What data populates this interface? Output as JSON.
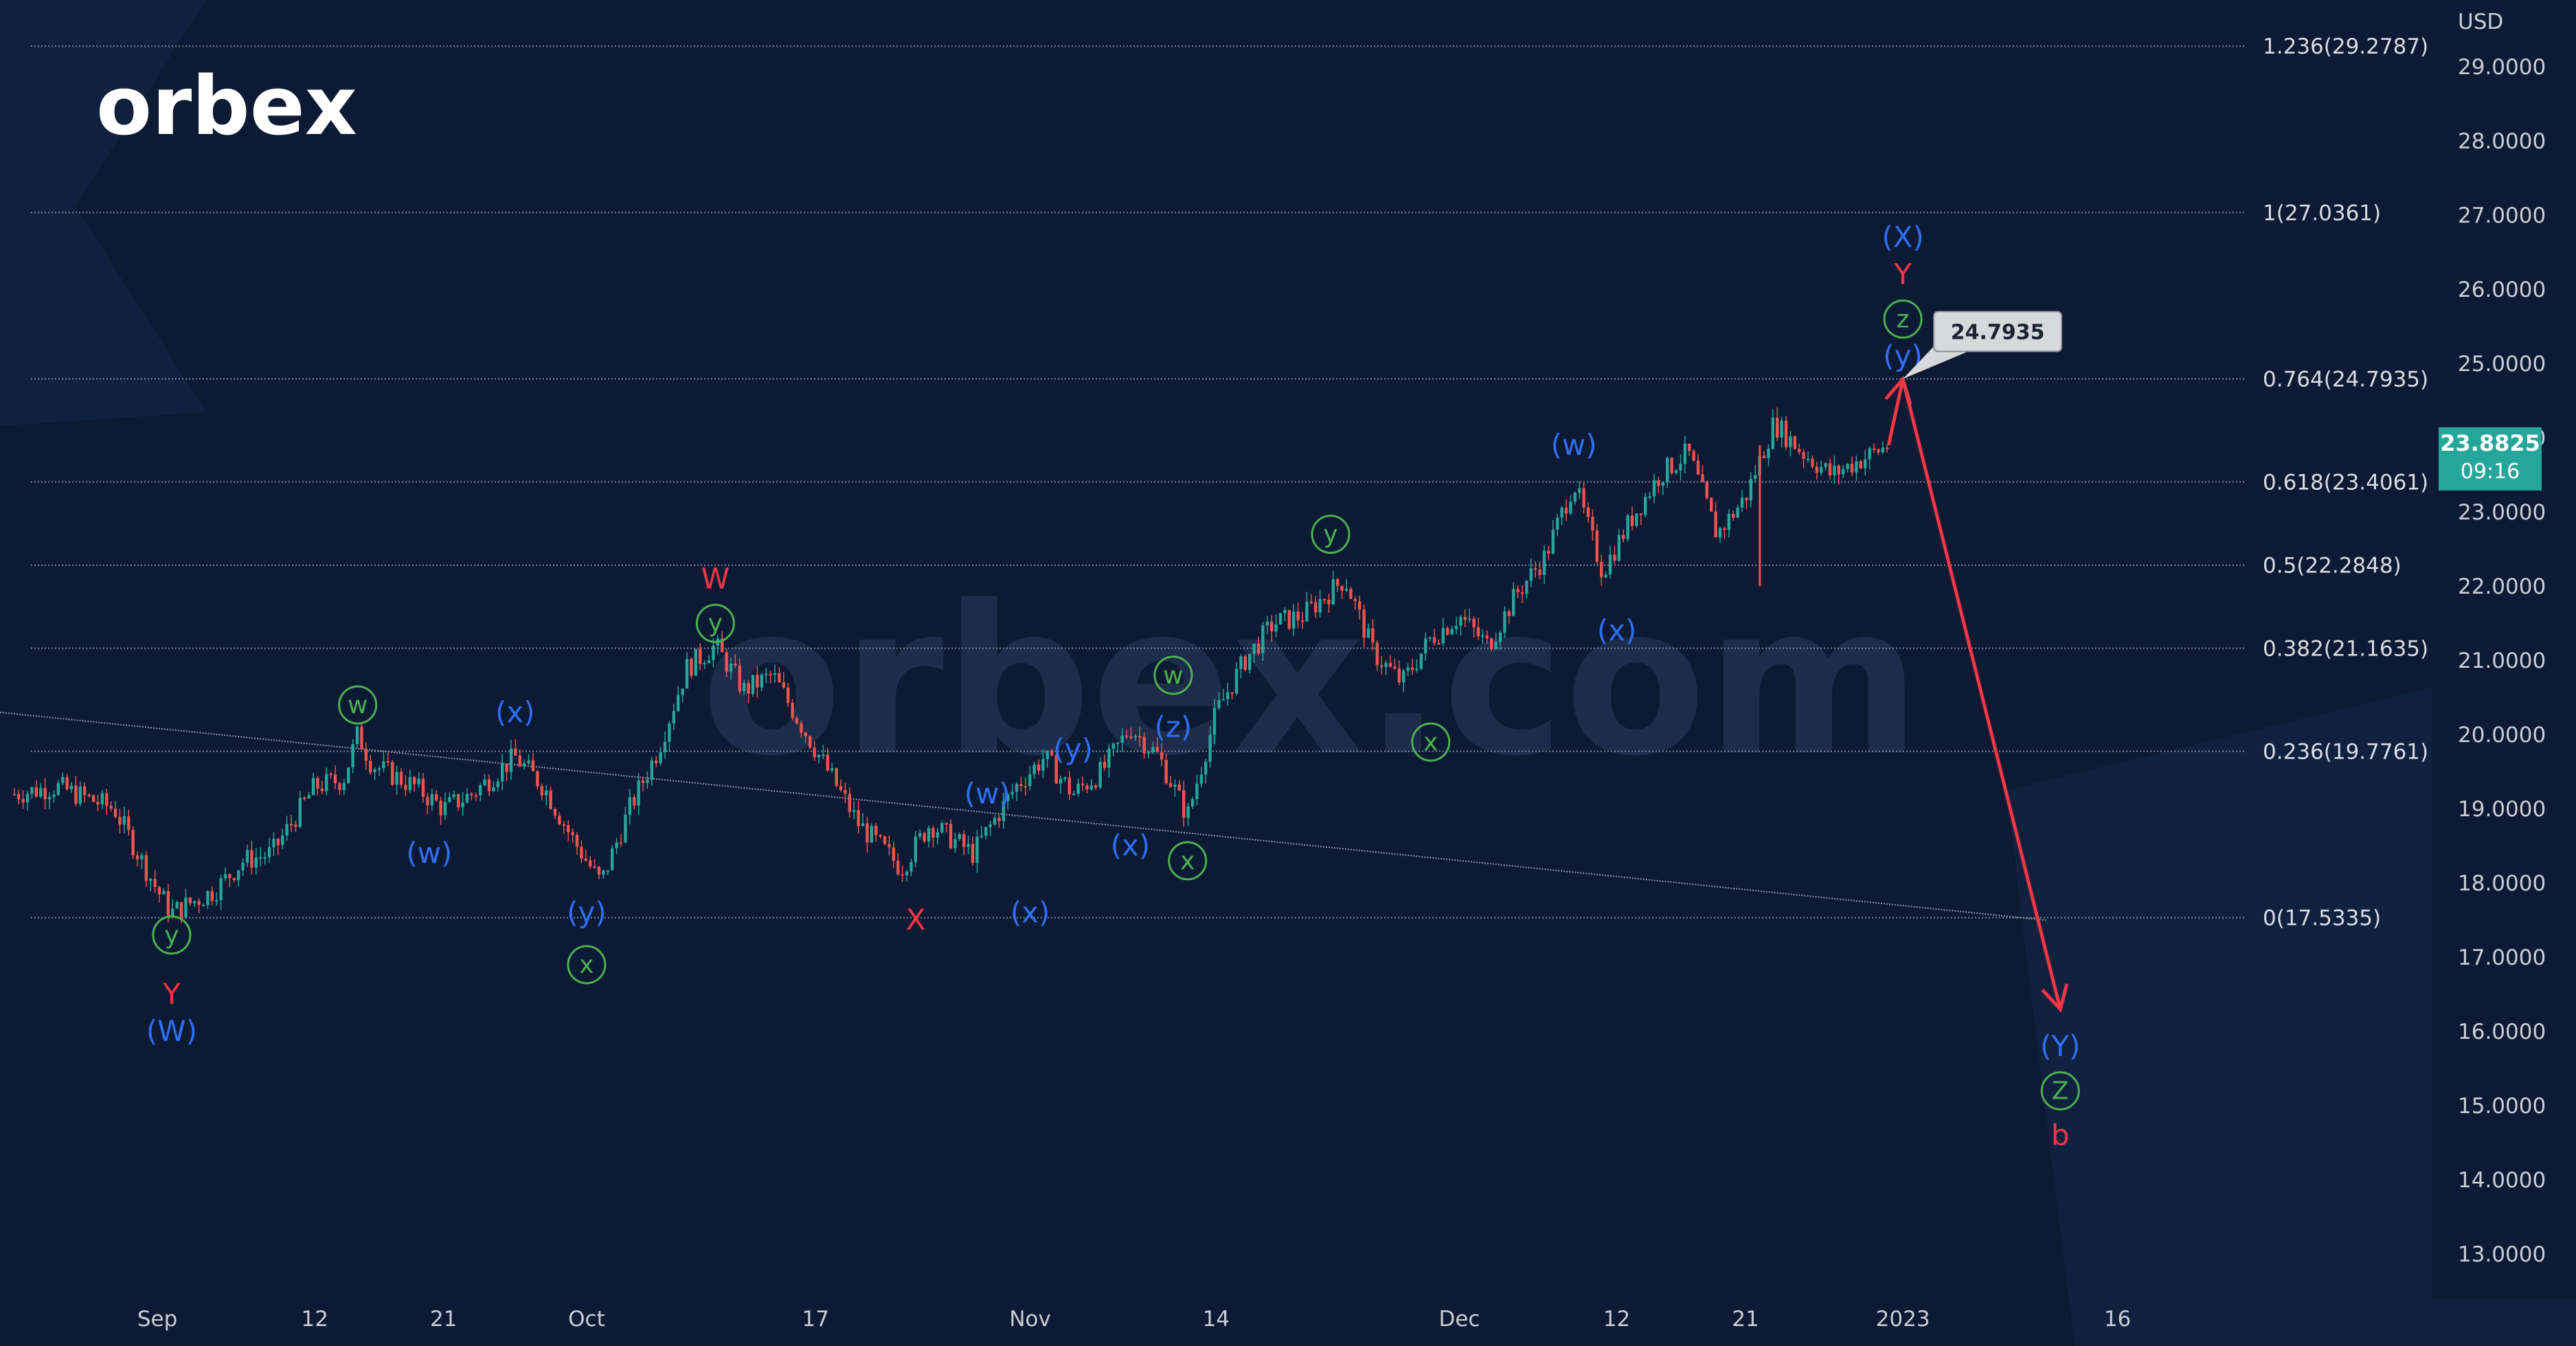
{
  "brand": {
    "logo_text": "orbex",
    "watermark_text": "orbex.com"
  },
  "colors": {
    "background": "#0c1a33",
    "wave_blue": "#2f6ef2",
    "wave_red": "#f23645",
    "wave_green": "#4caf50",
    "candle_up": "#26a69a",
    "candle_down": "#ef5350",
    "projection": "#f23645",
    "price_tag": "#26a69a",
    "fib_line": "#7d8696"
  },
  "price_axis": {
    "currency": "USD",
    "ticks": [
      "29.0000",
      "28.0000",
      "27.0000",
      "26.0000",
      "25.0000",
      "24.0000",
      "23.0000",
      "22.0000",
      "21.0000",
      "20.0000",
      "19.0000",
      "18.0000",
      "17.0000",
      "16.0000",
      "15.0000",
      "14.0000",
      "13.0000"
    ],
    "current_price": "23.8825",
    "countdown": "09:16"
  },
  "time_axis": {
    "ticks": [
      "Sep",
      "12",
      "21",
      "Oct",
      "17",
      "Nov",
      "14",
      "Dec",
      "12",
      "21",
      "2023",
      "16"
    ]
  },
  "chart_data": {
    "type": "candlestick",
    "title": "",
    "ylabel": "USD",
    "ylim": [
      12.4,
      29.9
    ],
    "x_axis": "date",
    "xlim": [
      "2022-08-21",
      "2023-01-25"
    ],
    "grid": false,
    "fib_levels": [
      {
        "ratio": "1.236",
        "price": 29.2787,
        "label": "1.236(29.2787)"
      },
      {
        "ratio": "1",
        "price": 27.0361,
        "label": "1(27.0361)"
      },
      {
        "ratio": "0.764",
        "price": 24.7935,
        "label": "0.764(24.7935)"
      },
      {
        "ratio": "0.618",
        "price": 23.4061,
        "label": "0.618(23.4061)"
      },
      {
        "ratio": "0.5",
        "price": 22.2848,
        "label": "0.5(22.2848)"
      },
      {
        "ratio": "0.382",
        "price": 21.1635,
        "label": "0.382(21.1635)"
      },
      {
        "ratio": "0.236",
        "price": 19.7761,
        "label": "0.236(19.7761)"
      },
      {
        "ratio": "0",
        "price": 17.5335,
        "label": "0(17.5335)"
      }
    ],
    "price_path": [
      [
        "2022-08-22",
        19.2
      ],
      [
        "2022-08-25",
        19.3
      ],
      [
        "2022-08-29",
        19.0
      ],
      [
        "2022-09-01",
        17.9
      ],
      [
        "2022-09-02",
        17.6
      ],
      [
        "2022-09-05",
        17.9
      ],
      [
        "2022-09-07",
        18.3
      ],
      [
        "2022-09-09",
        18.4
      ],
      [
        "2022-09-12",
        19.3
      ],
      [
        "2022-09-14",
        19.4
      ],
      [
        "2022-09-15",
        20.0
      ],
      [
        "2022-09-16",
        19.6
      ],
      [
        "2022-09-19",
        19.3
      ],
      [
        "2022-09-21",
        19.0
      ],
      [
        "2022-09-23",
        19.2
      ],
      [
        "2022-09-26",
        19.7
      ],
      [
        "2022-09-28",
        19.3
      ],
      [
        "2022-09-30",
        18.6
      ],
      [
        "2022-10-02",
        18.0
      ],
      [
        "2022-10-04",
        19.0
      ],
      [
        "2022-10-06",
        19.8
      ],
      [
        "2022-10-08",
        20.9
      ],
      [
        "2022-10-10",
        21.2
      ],
      [
        "2022-10-12",
        20.6
      ],
      [
        "2022-10-14",
        20.8
      ],
      [
        "2022-10-17",
        19.8
      ],
      [
        "2022-10-20",
        18.8
      ],
      [
        "2022-10-23",
        18.2
      ],
      [
        "2022-10-25",
        18.8
      ],
      [
        "2022-10-28",
        18.4
      ],
      [
        "2022-10-31",
        19.3
      ],
      [
        "2022-11-02",
        19.7
      ],
      [
        "2022-11-04",
        19.2
      ],
      [
        "2022-11-06",
        19.5
      ],
      [
        "2022-11-08",
        20.1
      ],
      [
        "2022-11-10",
        19.7
      ],
      [
        "2022-11-12",
        18.9
      ],
      [
        "2022-11-14",
        20.3
      ],
      [
        "2022-11-16",
        21.0
      ],
      [
        "2022-11-18",
        21.5
      ],
      [
        "2022-11-20",
        21.6
      ],
      [
        "2022-11-23",
        22.1
      ],
      [
        "2022-11-25",
        21.1
      ],
      [
        "2022-11-27",
        20.7
      ],
      [
        "2022-11-29",
        21.3
      ],
      [
        "2022-12-01",
        21.6
      ],
      [
        "2022-12-03",
        21.2
      ],
      [
        "2022-12-05",
        21.9
      ],
      [
        "2022-12-07",
        22.4
      ],
      [
        "2022-12-09",
        23.4
      ],
      [
        "2022-12-11",
        22.2
      ],
      [
        "2022-12-13",
        22.9
      ],
      [
        "2022-12-15",
        23.5
      ],
      [
        "2022-12-17",
        23.8
      ],
      [
        "2022-12-19",
        22.7
      ],
      [
        "2022-12-21",
        23.2
      ],
      [
        "2022-12-23",
        24.2
      ],
      [
        "2022-12-25",
        23.8
      ],
      [
        "2022-12-27",
        23.5
      ],
      [
        "2022-12-29",
        23.7
      ],
      [
        "2022-12-31",
        23.9
      ]
    ],
    "spike_wick": {
      "date": "2022-12-22",
      "low": 22.0,
      "high": 23.9
    },
    "diagonal_line": [
      [
        "2022-08-21",
        20.3
      ],
      [
        "2023-01-11",
        17.5
      ]
    ],
    "projection_arrows": [
      {
        "from": [
          "2022-12-31",
          23.9
        ],
        "to": [
          "2023-01-01",
          24.79
        ]
      },
      {
        "from": [
          "2023-01-01",
          24.79
        ],
        "to": [
          "2023-01-12",
          16.3
        ]
      }
    ],
    "target_callout": {
      "value": "24.7935",
      "price": 24.7935,
      "date": "2023-01-01"
    },
    "wave_labels": [
      {
        "text": "(W)",
        "date": "2022-09-02",
        "price": 16.0,
        "color": "blue"
      },
      {
        "text": "Y",
        "date": "2022-09-02",
        "price": 16.5,
        "color": "red"
      },
      {
        "text": "y",
        "date": "2022-09-02",
        "price": 17.3,
        "color": "green",
        "circled": true
      },
      {
        "text": "w",
        "date": "2022-09-15",
        "price": 20.4,
        "color": "green",
        "circled": true
      },
      {
        "text": "(w)",
        "date": "2022-09-20",
        "price": 18.4,
        "color": "blue"
      },
      {
        "text": "(x)",
        "date": "2022-09-26",
        "price": 20.3,
        "color": "blue"
      },
      {
        "text": "(y)",
        "date": "2022-10-01",
        "price": 17.6,
        "color": "blue"
      },
      {
        "text": "x",
        "date": "2022-10-01",
        "price": 16.9,
        "color": "green",
        "circled": true
      },
      {
        "text": "W",
        "date": "2022-10-10",
        "price": 22.1,
        "color": "red"
      },
      {
        "text": "y",
        "date": "2022-10-10",
        "price": 21.5,
        "color": "green",
        "circled": true
      },
      {
        "text": "X",
        "date": "2022-10-24",
        "price": 17.5,
        "color": "red"
      },
      {
        "text": "(w)",
        "date": "2022-10-29",
        "price": 19.2,
        "color": "blue"
      },
      {
        "text": "(x)",
        "date": "2022-11-01",
        "price": 17.6,
        "color": "blue"
      },
      {
        "text": "(y)",
        "date": "2022-11-04",
        "price": 19.8,
        "color": "blue"
      },
      {
        "text": "(x)",
        "date": "2022-11-08",
        "price": 18.5,
        "color": "blue"
      },
      {
        "text": "(z)",
        "date": "2022-11-11",
        "price": 20.1,
        "color": "blue"
      },
      {
        "text": "w",
        "date": "2022-11-11",
        "price": 20.8,
        "color": "green",
        "circled": true
      },
      {
        "text": "x",
        "date": "2022-11-12",
        "price": 18.3,
        "color": "green",
        "circled": true
      },
      {
        "text": "y",
        "date": "2022-11-22",
        "price": 22.7,
        "color": "green",
        "circled": true
      },
      {
        "text": "x",
        "date": "2022-11-29",
        "price": 19.9,
        "color": "green",
        "circled": true
      },
      {
        "text": "(w)",
        "date": "2022-12-09",
        "price": 23.9,
        "color": "blue"
      },
      {
        "text": "(x)",
        "date": "2022-12-12",
        "price": 21.4,
        "color": "blue"
      },
      {
        "text": "(y)",
        "date": "2023-01-01",
        "price": 25.1,
        "color": "blue"
      },
      {
        "text": "z",
        "date": "2023-01-01",
        "price": 25.6,
        "color": "green",
        "circled": true
      },
      {
        "text": "Y",
        "date": "2023-01-01",
        "price": 26.2,
        "color": "red"
      },
      {
        "text": "(X)",
        "date": "2023-01-01",
        "price": 26.7,
        "color": "blue"
      },
      {
        "text": "(Y)",
        "date": "2023-01-12",
        "price": 15.8,
        "color": "blue"
      },
      {
        "text": "Z",
        "date": "2023-01-12",
        "price": 15.2,
        "color": "green",
        "circled": true
      },
      {
        "text": "b",
        "date": "2023-01-12",
        "price": 14.6,
        "color": "red"
      }
    ]
  }
}
